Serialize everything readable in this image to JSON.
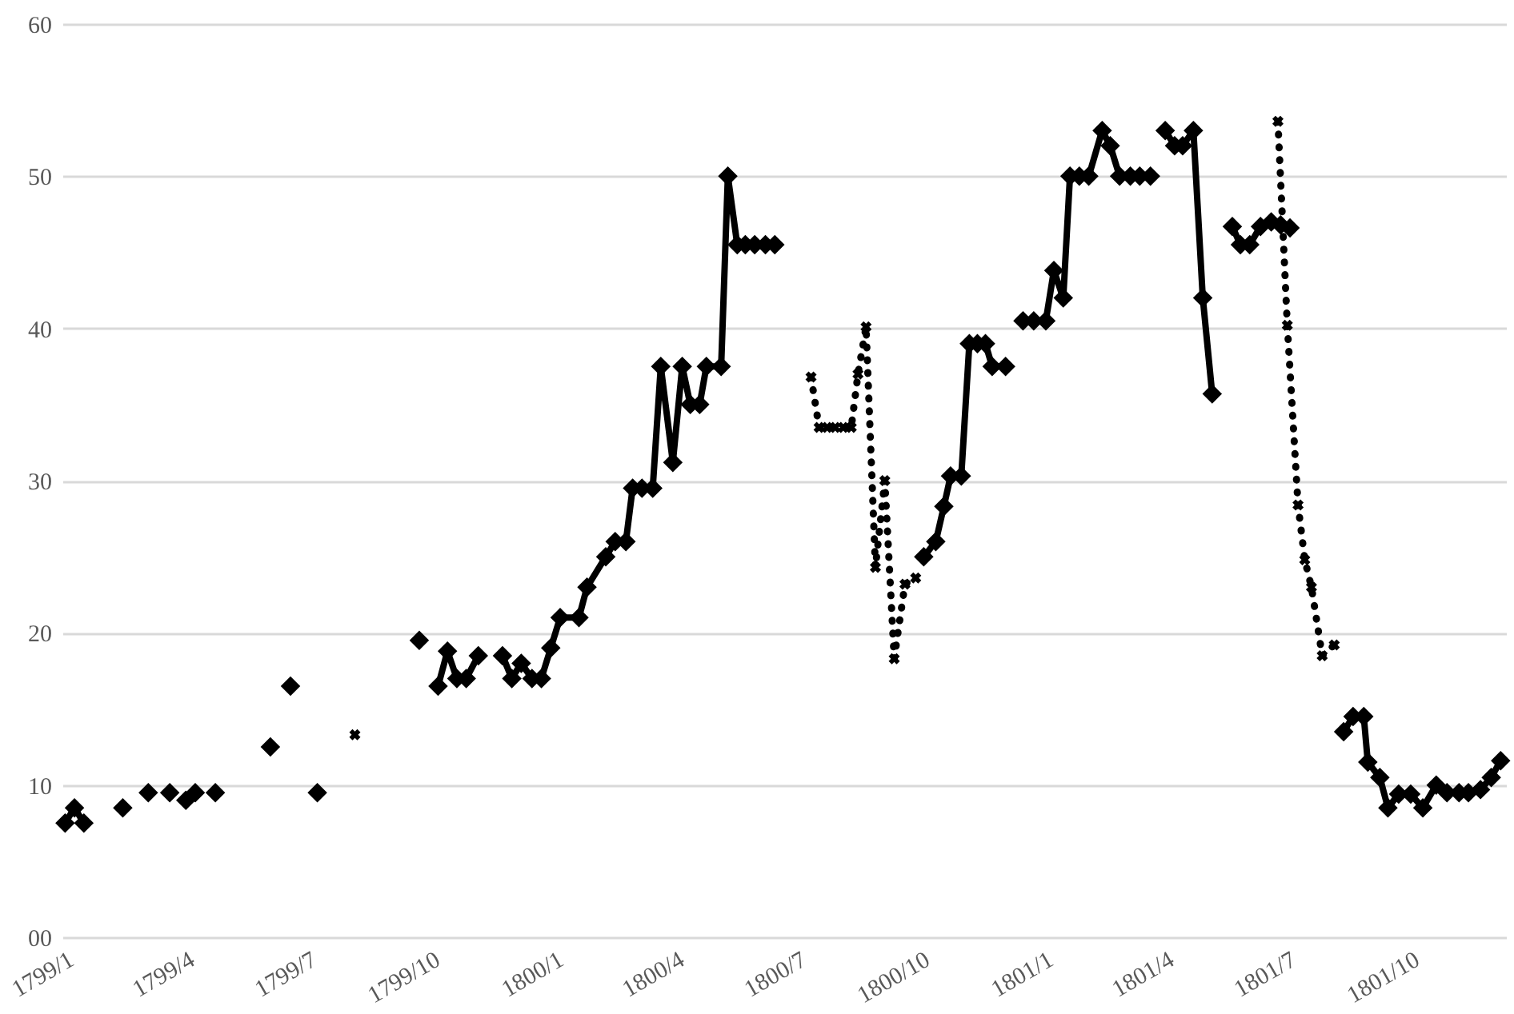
{
  "chart_data": {
    "type": "line",
    "xlim": [
      "1798-12-30",
      "1801-12-11"
    ],
    "xticks": [
      {
        "value": "1799-01-01",
        "label": "1799/1"
      },
      {
        "value": "1799-04-01",
        "label": "1799/4"
      },
      {
        "value": "1799-07-01",
        "label": "1799/7"
      },
      {
        "value": "1799-10-01",
        "label": "1799/10"
      },
      {
        "value": "1800-01-01",
        "label": "1800/1"
      },
      {
        "value": "1800-04-01",
        "label": "1800/4"
      },
      {
        "value": "1800-07-01",
        "label": "1800/7"
      },
      {
        "value": "1800-10-01",
        "label": "1800/10"
      },
      {
        "value": "1801-01-01",
        "label": "1801/1"
      },
      {
        "value": "1801-04-01",
        "label": "1801/4"
      },
      {
        "value": "1801-07-01",
        "label": "1801/7"
      },
      {
        "value": "1801-10-01",
        "label": "1801/10"
      }
    ],
    "ylim": [
      0,
      60
    ],
    "yticks": [
      {
        "value": 0,
        "label": "00"
      },
      10,
      20,
      30,
      40,
      50,
      60
    ],
    "grid": "y",
    "series": [
      {
        "color": "#000000",
        "marker": "diamond",
        "line_style": "solid",
        "x": [
          "1799-01-01",
          "1799-01-08",
          "1799-01-15",
          "1799-01-30",
          "1799-02-13",
          "1799-02-22",
          "1799-03-04",
          "1799-03-12",
          "1799-03-20",
          "1799-03-26",
          "1799-04-01",
          "1799-04-08",
          "1799-04-15",
          "1799-04-23",
          "1799-05-15",
          "1799-06-03",
          "1799-06-10",
          "1799-06-18",
          "1799-06-28",
          "1799-07-08",
          "1799-08-20",
          "1799-09-22",
          "1799-09-30",
          "1799-10-06",
          "1799-10-13",
          "1799-10-20",
          "1799-10-27",
          "1799-11-05",
          "1799-11-14",
          "1799-11-23",
          "1799-11-30",
          "1799-12-07",
          "1799-12-15",
          "1799-12-22",
          "1799-12-29",
          "1800-01-05",
          "1800-01-19",
          "1800-01-25",
          "1800-02-08",
          "1800-02-15",
          "1800-02-23",
          "1800-02-28",
          "1800-03-07",
          "1800-03-15",
          "1800-03-21",
          "1800-03-30",
          "1800-04-06",
          "1800-04-12",
          "1800-04-19",
          "1800-04-24",
          "1800-05-05",
          "1800-05-10",
          "1800-05-17",
          "1800-05-23",
          "1800-05-30",
          "1800-06-07",
          "1800-06-14",
          "1800-09-01",
          "1800-10-03",
          "1800-10-12",
          "1800-10-18",
          "1800-10-23",
          "1800-10-31",
          "1800-11-06",
          "1800-11-12",
          "1800-11-18",
          "1800-11-23",
          "1800-12-03",
          "1800-12-10",
          "1800-12-16",
          "1800-12-24",
          "1801-01-02",
          "1801-01-08",
          "1801-01-15",
          "1801-01-20",
          "1801-01-27",
          "1801-02-03",
          "1801-02-13",
          "1801-02-19",
          "1801-02-26",
          "1801-03-06",
          "1801-03-13",
          "1801-03-21",
          "1801-03-26",
          "1801-04-01",
          "1801-04-08",
          "1801-04-14",
          "1801-04-22",
          "1801-04-29",
          "1801-05-06",
          "1801-05-14",
          "1801-05-21",
          "1801-05-27",
          "1801-06-03",
          "1801-06-11",
          "1801-06-19",
          "1801-06-26",
          "1801-07-03",
          "1801-07-25",
          "1801-08-12",
          "1801-08-19",
          "1801-08-27",
          "1801-08-30",
          "1801-09-08",
          "1801-09-14",
          "1801-09-22",
          "1801-10-01",
          "1801-10-10",
          "1801-10-20",
          "1801-10-28",
          "1801-11-06",
          "1801-11-13",
          "1801-11-22",
          "1801-11-30",
          "1801-12-07"
        ],
        "values": [
          7.5,
          8.5,
          7.5,
          null,
          8.5,
          null,
          9.5,
          null,
          9.5,
          null,
          9.0,
          9.5,
          null,
          9.5,
          null,
          12.5,
          null,
          16.5,
          null,
          9.5,
          null,
          19.5,
          null,
          16.5,
          18.8,
          17,
          17,
          18.5,
          null,
          18.5,
          17,
          18,
          17,
          17,
          19,
          21,
          21,
          23,
          25,
          26,
          26,
          29.5,
          29.5,
          29.5,
          37.5,
          31.2,
          37.5,
          35,
          35,
          37.5,
          37.5,
          50,
          45.5,
          45.5,
          45.5,
          45.5,
          45.5,
          null,
          25,
          26,
          28.3,
          30.3,
          30.3,
          39,
          39,
          39,
          37.5,
          37.5,
          null,
          40.5,
          40.5,
          40.5,
          43.8,
          42,
          50,
          50,
          50,
          53,
          52,
          50,
          50,
          50,
          50,
          null,
          53,
          52,
          52,
          53,
          42,
          35.7,
          null,
          46.7,
          45.5,
          45.5,
          46.7,
          47,
          46.8,
          46.6,
          null,
          13.5,
          14.5,
          14.5,
          11.5,
          10.5,
          8.5,
          9.4,
          9.4,
          8.5,
          10,
          9.5,
          9.5,
          9.5,
          9.7,
          10.5,
          11.6
        ]
      },
      {
        "color": "#000000",
        "marker": "cross",
        "line_style": "dotted",
        "x": [
          "1799-08-05",
          "1800-06-30",
          "1800-07-11",
          "1800-07-17",
          "1800-07-23",
          "1800-07-29",
          "1800-08-04",
          "1800-08-10",
          "1800-08-15",
          "1800-08-21",
          "1800-08-28",
          "1800-09-04",
          "1800-09-11",
          "1800-09-19",
          "1800-09-27",
          "1801-03-01",
          "1801-06-24",
          "1801-07-01",
          "1801-07-09",
          "1801-07-14",
          "1801-07-19",
          "1801-07-27",
          "1801-08-05"
        ],
        "values": [
          13.3,
          null,
          36.8,
          33.5,
          33.5,
          33.5,
          33.5,
          33.5,
          37,
          40.1,
          24.3,
          30,
          18.3,
          23.2,
          23.6,
          null,
          53.6,
          40.2,
          28.4,
          24.8,
          23,
          18.5,
          19.2
        ]
      }
    ]
  }
}
